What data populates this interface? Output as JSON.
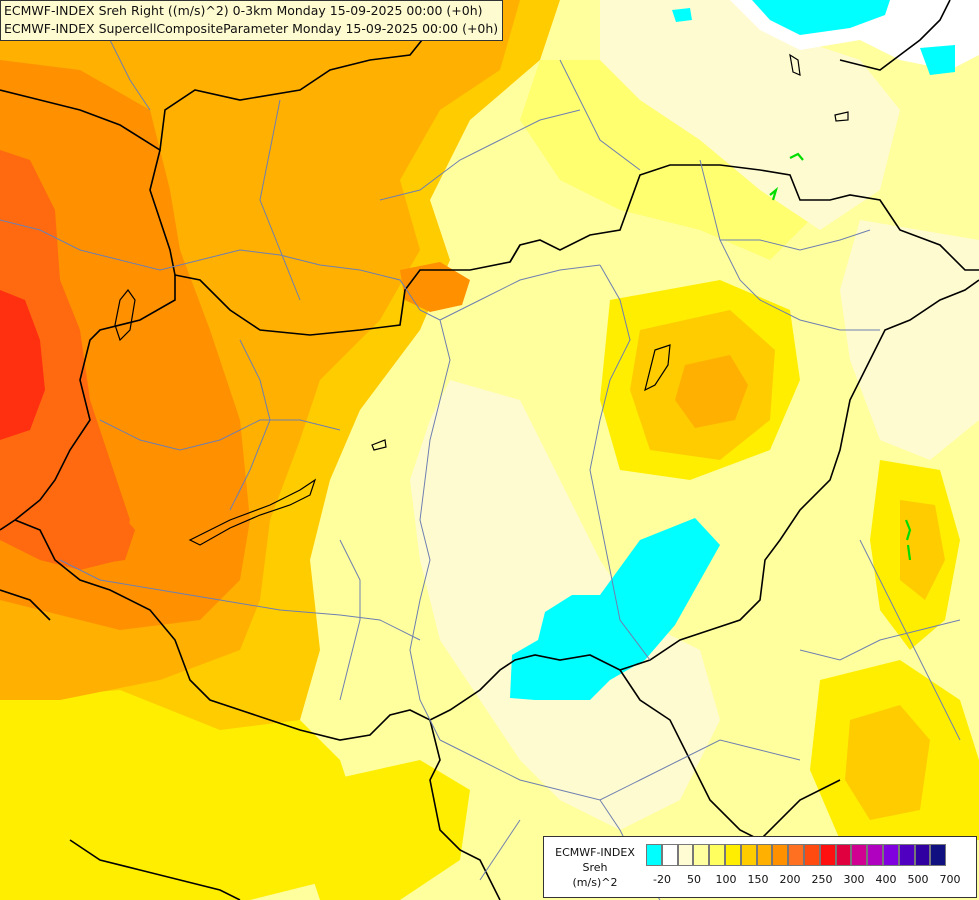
{
  "title": {
    "line1": "ECMWF-INDEX Sreh Right ((m/s)^2) 0-3km Monday 15-09-2025 00:00 (+0h)",
    "line2": "ECMWF-INDEX SupercellCompositeParameter Monday 15-09-2025 00:00 (+0h)"
  },
  "legend": {
    "line1": "ECMWF-INDEX",
    "line2": "Sreh",
    "line3": "(m/s)^2",
    "ticks": [
      "-20",
      "50",
      "100",
      "150",
      "200",
      "250",
      "300",
      "400",
      "500",
      "700"
    ],
    "colors": [
      "#00ffff",
      "#ffffff",
      "#fffbd2",
      "#ffffa0",
      "#ffff60",
      "#ffee00",
      "#ffcc00",
      "#ffb000",
      "#ff9000",
      "#ff7020",
      "#ff4a10",
      "#ff1010",
      "#e00040",
      "#d00090",
      "#b000c0",
      "#8000e0",
      "#5000c0",
      "#3000a0",
      "#101080"
    ]
  },
  "map_colors": {
    "base": "#ffff9e",
    "pale": "#fffbd0",
    "light_yellow": "#ffff70",
    "yellow": "#ffee00",
    "gold": "#ffcc00",
    "orange_light": "#ffb000",
    "orange": "#ff9000",
    "orange_dark": "#ff6a10",
    "red": "#ff3010",
    "cyan": "#00ffff",
    "white": "#ffffff",
    "border": "#000000",
    "river": "#6e7fb0",
    "contour": "#00dd00"
  }
}
